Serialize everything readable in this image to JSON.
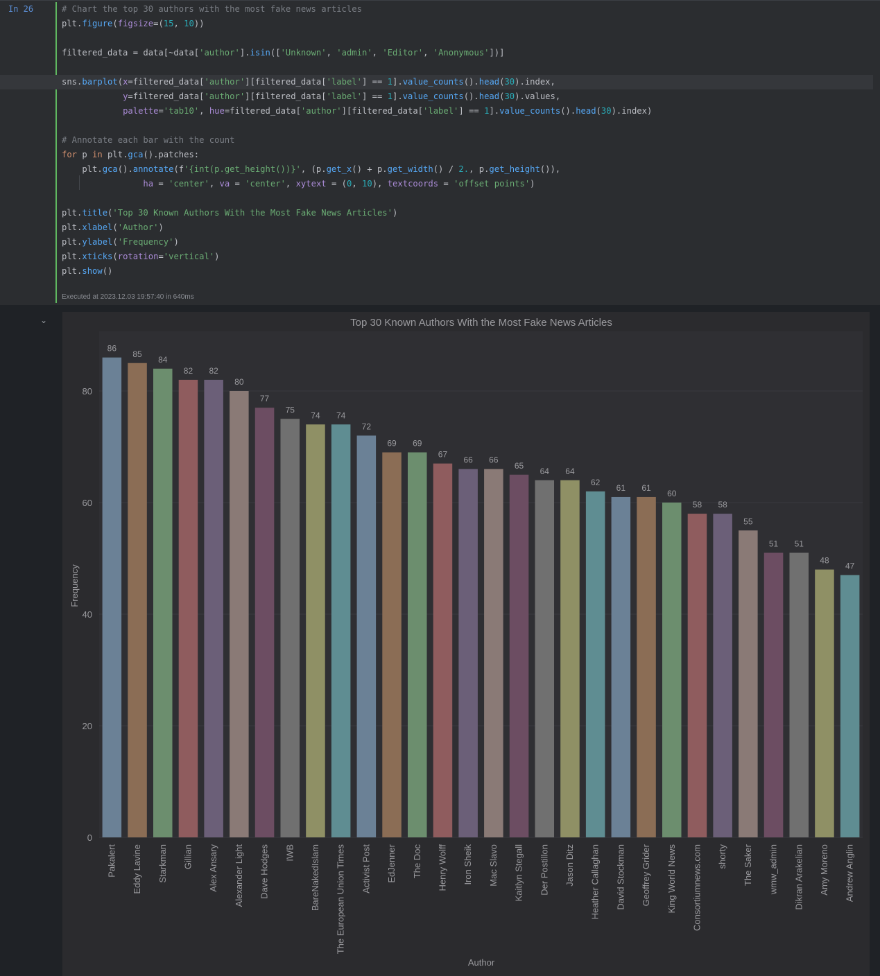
{
  "cell": {
    "prompt": "In 26",
    "code_lines": [
      {
        "cls": "cm",
        "t": "# Chart the top 30 authors with the most fake news articles"
      },
      {
        "cls": "",
        "t": "plt.figure(figsize=(15, 10))"
      },
      {
        "cls": "",
        "t": ""
      },
      {
        "cls": "",
        "t": "filtered_data = data[~data['author'].isin(['Unknown', 'admin', 'Editor', 'Anonymous'])]"
      },
      {
        "cls": "",
        "t": ""
      },
      {
        "cls": "hl",
        "t": "sns.barplot(x=filtered_data['author'][filtered_data['label'] == 1].value_counts().head(30).index,"
      },
      {
        "cls": "",
        "t": "            y=filtered_data['author'][filtered_data['label'] == 1].value_counts().head(30).values,"
      },
      {
        "cls": "",
        "t": "            palette='tab10', hue=filtered_data['author'][filtered_data['label'] == 1].value_counts().head(30).index)"
      },
      {
        "cls": "",
        "t": ""
      },
      {
        "cls": "cm",
        "t": "# Annotate each bar with the count"
      },
      {
        "cls": "",
        "t": "for p in plt.gca().patches:"
      },
      {
        "cls": "",
        "t": "    plt.gca().annotate(f'{int(p.get_height())}', (p.get_x() + p.get_width() / 2., p.get_height()),"
      },
      {
        "cls": "",
        "t": "                ha = 'center', va = 'center', xytext = (0, 10), textcoords = 'offset points')"
      },
      {
        "cls": "",
        "t": ""
      },
      {
        "cls": "",
        "t": "plt.title('Top 30 Known Authors With the Most Fake News Articles')"
      },
      {
        "cls": "",
        "t": "plt.xlabel('Author')"
      },
      {
        "cls": "",
        "t": "plt.ylabel('Frequency')"
      },
      {
        "cls": "",
        "t": "plt.xticks(rotation='vertical')"
      },
      {
        "cls": "",
        "t": "plt.show()"
      }
    ],
    "exec_status": "Executed at 2023.12.03 19:57:40 in 640ms"
  },
  "output": {
    "collapse_icon": "chevron-down-icon"
  },
  "chart_data": {
    "type": "bar",
    "title": "Top 30 Known Authors With the Most Fake News Articles",
    "xlabel": "Author",
    "ylabel": "Frequency",
    "ylim": [
      0,
      90
    ],
    "yticks": [
      0,
      20,
      40,
      60,
      80
    ],
    "grid": true,
    "categories": [
      "Pakalert",
      "Eddy Lavine",
      "Starkman",
      "Gillian",
      "Alex Ansary",
      "Alexander Light",
      "Dave Hodges",
      "IWB",
      "BareNakedIslam",
      "The European Union Times",
      "Activist Post",
      "EdJenner",
      "The Doc",
      "Henry Wolff",
      "Iron Sheik",
      "Mac Slavo",
      "Kaitlyn Stegall",
      "Der Postillon",
      "Jason Ditz",
      "Heather Callaghan",
      "David Stockman",
      "Geoffrey Grider",
      "King World News",
      "Consortiumnews.com",
      "shorty",
      "The Saker",
      "wmw_admin",
      "Dikran Arakelian",
      "Amy Moreno",
      "Andrew Anglin"
    ],
    "values": [
      86,
      85,
      84,
      82,
      82,
      80,
      77,
      75,
      74,
      74,
      72,
      69,
      69,
      67,
      66,
      66,
      65,
      64,
      64,
      62,
      61,
      61,
      60,
      58,
      58,
      55,
      51,
      51,
      48,
      47
    ],
    "colors": [
      "#6b8196",
      "#8b6d55",
      "#6c8e6e",
      "#8f5c5e",
      "#6b5f78",
      "#8a7a76",
      "#6c4d62",
      "#707070",
      "#8f9065",
      "#5f8d92",
      "#6b8196",
      "#8b6d55",
      "#6c8e6e",
      "#8f5c5e",
      "#6b5f78",
      "#8a7a76",
      "#6c4d62",
      "#707070",
      "#8f9065",
      "#5f8d92",
      "#6b8196",
      "#8b6d55",
      "#6c8e6e",
      "#8f5c5e",
      "#6b5f78",
      "#8a7a76",
      "#6c4d62",
      "#707070",
      "#8f9065",
      "#5f8d92"
    ]
  }
}
